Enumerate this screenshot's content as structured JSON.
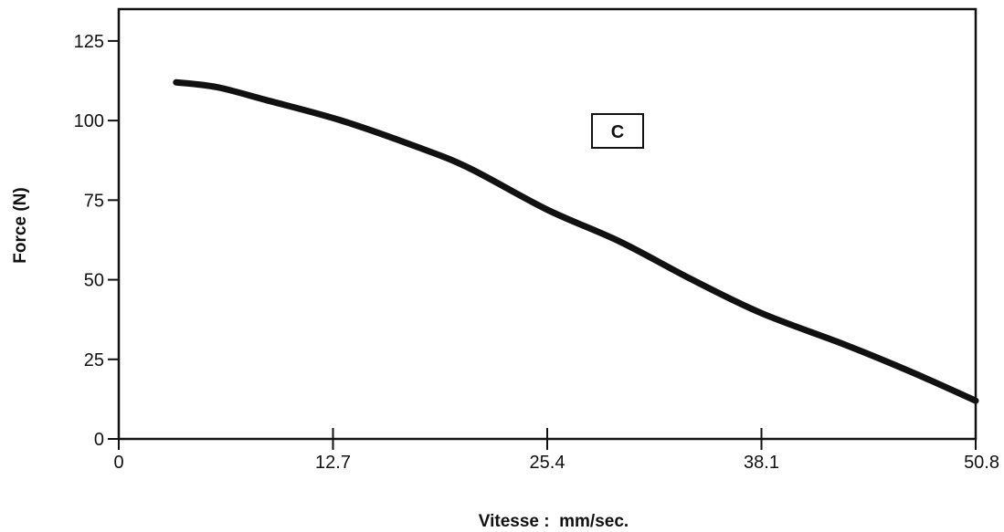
{
  "chart_data": {
    "type": "line",
    "title": "",
    "xlabel": "Vitesse :  mm/sec.",
    "ylabel": "Force (N)",
    "xlim": [
      0,
      50.8
    ],
    "ylim": [
      0,
      135
    ],
    "xticks": [
      0,
      12.7,
      25.4,
      38.1,
      50.8
    ],
    "xtick_labels": [
      "0",
      "12.7",
      "25.4",
      "38.1",
      "50.8"
    ],
    "yticks": [
      0,
      25,
      50,
      75,
      100,
      125
    ],
    "ytick_labels": [
      "0",
      "25",
      "50",
      "75",
      "100",
      "125"
    ],
    "grid": false,
    "annotation": "C",
    "series": [
      {
        "x": [
          3.4,
          5.8,
          8.7,
          13.2,
          17.8,
          20.8,
          25.4,
          29.7,
          34.0,
          38.1,
          43.1,
          47.0,
          50.8
        ],
        "y": [
          112,
          110.5,
          106.5,
          100,
          91.5,
          85,
          72,
          62,
          50,
          39.5,
          29.5,
          21,
          12
        ],
        "color": "#111111"
      }
    ]
  }
}
